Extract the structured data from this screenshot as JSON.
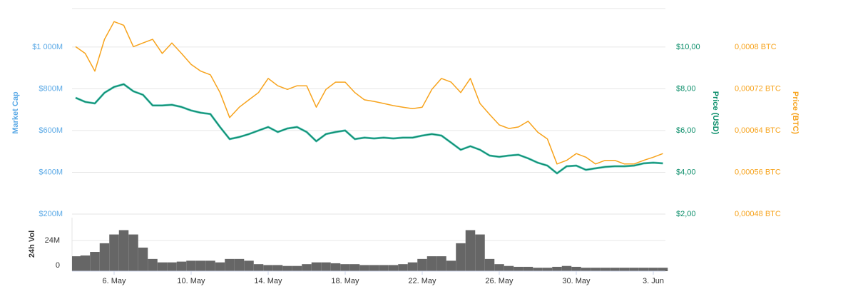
{
  "chart_data": [
    {
      "type": "line",
      "ylabel": "Market Cap",
      "y2label": "Price (USD)",
      "y3label": "Price (BTC)",
      "ylim": [
        200000000,
        1184000000
      ],
      "yticks": [
        {
          "value": 200000000,
          "label": "$200M"
        },
        {
          "value": 400000000,
          "label": "$400M"
        },
        {
          "value": 600000000,
          "label": "$600M"
        },
        {
          "value": 800000000,
          "label": "$800M"
        },
        {
          "value": 1000000000,
          "label": "$1 000M"
        }
      ],
      "y2lim": [
        2,
        11.84
      ],
      "y2ticks": [
        {
          "value": 2,
          "label": "$2,00"
        },
        {
          "value": 4,
          "label": "$4,00"
        },
        {
          "value": 6,
          "label": "$6,00"
        },
        {
          "value": 8,
          "label": "$8,00"
        },
        {
          "value": 10,
          "label": "$10,00"
        }
      ],
      "y3lim": [
        0.00048,
        0.000874
      ],
      "y3ticks": [
        {
          "value": 0.00048,
          "label": "0,00048 BTC"
        },
        {
          "value": 0.00056,
          "label": "0,00056 BTC"
        },
        {
          "value": 0.00064,
          "label": "0,00064 BTC"
        },
        {
          "value": 0.00072,
          "label": "0,00072 BTC"
        },
        {
          "value": 0.0008,
          "label": "0,0008 BTC"
        }
      ],
      "grid": true,
      "series": [
        {
          "name": "Market Cap",
          "color": "#5cc3bd",
          "axis": "y",
          "values": [
            757000000,
            737000000,
            730000000,
            781000000,
            809000000,
            822000000,
            788000000,
            771000000,
            720000000,
            720000000,
            723000000,
            713000000,
            696000000,
            685000000,
            679000000,
            617000000,
            559000000,
            569000000,
            583000000,
            600000000,
            617000000,
            593000000,
            610000000,
            617000000,
            593000000,
            549000000,
            583000000,
            593000000,
            600000000,
            559000000,
            566000000,
            562000000,
            566000000,
            562000000,
            566000000,
            566000000,
            576000000,
            583000000,
            576000000,
            542000000,
            508000000,
            525000000,
            508000000,
            480000000,
            474000000,
            480000000,
            484000000,
            467000000,
            446000000,
            432000000,
            395000000,
            429000000,
            432000000,
            412000000,
            419000000,
            426000000,
            429000000,
            429000000,
            432000000,
            443000000,
            446000000,
            443000000
          ]
        },
        {
          "name": "Price (USD)",
          "color": "#0b8e6a",
          "axis": "y2",
          "values": [
            7.57,
            7.37,
            7.3,
            7.81,
            8.09,
            8.22,
            7.88,
            7.71,
            7.2,
            7.2,
            7.23,
            7.13,
            6.96,
            6.85,
            6.79,
            6.17,
            5.59,
            5.69,
            5.83,
            6.0,
            6.17,
            5.93,
            6.1,
            6.17,
            5.93,
            5.49,
            5.83,
            5.93,
            6.0,
            5.59,
            5.66,
            5.62,
            5.66,
            5.62,
            5.66,
            5.66,
            5.76,
            5.83,
            5.76,
            5.42,
            5.08,
            5.25,
            5.08,
            4.8,
            4.74,
            4.8,
            4.84,
            4.67,
            4.46,
            4.32,
            3.95,
            4.29,
            4.32,
            4.12,
            4.19,
            4.26,
            4.29,
            4.29,
            4.32,
            4.43,
            4.46,
            4.43
          ]
        },
        {
          "name": "Price (BTC)",
          "color": "#f7a31c",
          "axis": "y3",
          "values": [
            0.000801,
            0.000788,
            0.000754,
            0.000815,
            0.000849,
            0.000842,
            0.000801,
            0.000808,
            0.000815,
            0.000788,
            0.000808,
            0.000788,
            0.000767,
            0.000754,
            0.000747,
            0.000713,
            0.000665,
            0.000685,
            0.000699,
            0.000713,
            0.00074,
            0.000726,
            0.000719,
            0.000726,
            0.000726,
            0.000685,
            0.000719,
            0.000733,
            0.000733,
            0.000713,
            0.000699,
            0.000696,
            0.000692,
            0.000688,
            0.000685,
            0.000682,
            0.000685,
            0.000719,
            0.00074,
            0.000733,
            0.000713,
            0.00074,
            0.000692,
            0.000671,
            0.000651,
            0.000644,
            0.000647,
            0.000658,
            0.000637,
            0.000624,
            0.000576,
            0.000583,
            0.000596,
            0.000589,
            0.000576,
            0.000583,
            0.000583,
            0.000576,
            0.000576,
            0.000583,
            0.000589,
            0.000596
          ]
        }
      ]
    },
    {
      "type": "bar",
      "ylabel": "24h Vol",
      "ylim": [
        0,
        42000000
      ],
      "yticks": [
        0,
        {
          "value": 24000000,
          "label": "24M"
        }
      ],
      "color": "#666666",
      "categories": [
        null,
        null,
        null,
        null,
        "6. May",
        null,
        null,
        null,
        null,
        null,
        null,
        null,
        "10. May",
        null,
        null,
        null,
        null,
        null,
        null,
        null,
        "14. May",
        null,
        null,
        null,
        null,
        null,
        null,
        null,
        "18. May",
        null,
        null,
        null,
        null,
        null,
        null,
        null,
        "22. May",
        null,
        null,
        null,
        null,
        null,
        null,
        null,
        "26. May",
        null,
        null,
        null,
        null,
        null,
        null,
        null,
        "30. May",
        null,
        null,
        null,
        null,
        null,
        null,
        null,
        "3. Jun",
        null
      ],
      "values": [
        11700000,
        12300000,
        15100000,
        21900000,
        28800000,
        32200000,
        28800000,
        18500000,
        9600000,
        6900000,
        6900000,
        7500000,
        8200000,
        8200000,
        8200000,
        6900000,
        9600000,
        9600000,
        8200000,
        5500000,
        4800000,
        4800000,
        4100000,
        4100000,
        5500000,
        6900000,
        6900000,
        6200000,
        5500000,
        5500000,
        4800000,
        4800000,
        4800000,
        4800000,
        5500000,
        6900000,
        9600000,
        11700000,
        11700000,
        8200000,
        21900000,
        32200000,
        28800000,
        9600000,
        5500000,
        4100000,
        3400000,
        3400000,
        2700000,
        2700000,
        3400000,
        4100000,
        3400000,
        2700000,
        2700000,
        2700000,
        2700000,
        2700000,
        2700000,
        2700000,
        2700000,
        2700000
      ]
    }
  ]
}
